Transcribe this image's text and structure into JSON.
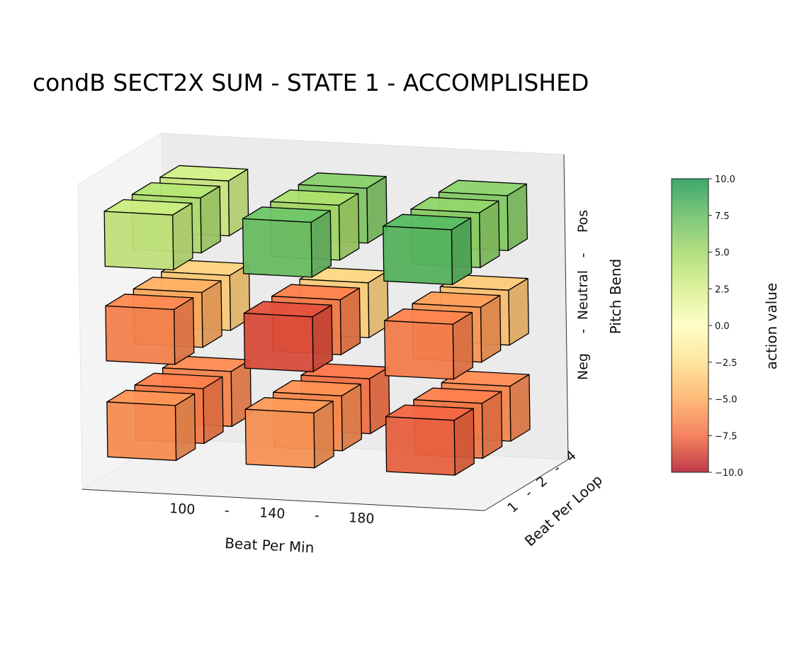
{
  "chart_data": {
    "type": "3d-bar",
    "title": "condB SECT2X SUM - STATE 1 - ACCOMPLISHED",
    "x_axis": {
      "label": "Beat Per Min",
      "ticks": [
        "100",
        "-",
        "140",
        "-",
        "180"
      ],
      "categories": [
        "100",
        "140",
        "180"
      ]
    },
    "y_axis": {
      "label": "Beat Per Loop",
      "ticks": [
        "1",
        "-",
        "2",
        "-",
        "4"
      ],
      "categories": [
        "1",
        "2",
        "4"
      ]
    },
    "z_axis": {
      "label": "Pitch Bend",
      "ticks": [
        "Neg",
        "-",
        "Neutral",
        "-",
        "Pos"
      ],
      "categories": [
        "Neg",
        "Neutral",
        "Pos"
      ]
    },
    "colorbar": {
      "label": "action value",
      "range": [
        -10,
        10
      ],
      "ticks": [
        "10.0",
        "7.5",
        "5.0",
        "2.5",
        "0.0",
        "−2.5",
        "−5.0",
        "−7.5",
        "−10.0"
      ],
      "colors": [
        "#b2182b",
        "#f46d43",
        "#fdae61",
        "#fee08b",
        "#ffffbf",
        "#d9ef8b",
        "#a6d96a",
        "#66bd63",
        "#1a9850"
      ]
    },
    "values": [
      {
        "bpm": "100",
        "loop": "1",
        "pitch": "Neg",
        "value": -6.2
      },
      {
        "bpm": "100",
        "loop": "2",
        "pitch": "Neg",
        "value": -7.0
      },
      {
        "bpm": "100",
        "loop": "4",
        "pitch": "Neg",
        "value": -6.5
      },
      {
        "bpm": "140",
        "loop": "1",
        "pitch": "Neg",
        "value": -6.0
      },
      {
        "bpm": "140",
        "loop": "2",
        "pitch": "Neg",
        "value": -6.3
      },
      {
        "bpm": "140",
        "loop": "4",
        "pitch": "Neg",
        "value": -7.3
      },
      {
        "bpm": "180",
        "loop": "1",
        "pitch": "Neg",
        "value": -7.8
      },
      {
        "bpm": "180",
        "loop": "2",
        "pitch": "Neg",
        "value": -7.0
      },
      {
        "bpm": "180",
        "loop": "4",
        "pitch": "Neg",
        "value": -6.5
      },
      {
        "bpm": "100",
        "loop": "1",
        "pitch": "Neutral",
        "value": -6.6
      },
      {
        "bpm": "100",
        "loop": "2",
        "pitch": "Neutral",
        "value": -5.2
      },
      {
        "bpm": "100",
        "loop": "4",
        "pitch": "Neutral",
        "value": -3.5
      },
      {
        "bpm": "140",
        "loop": "1",
        "pitch": "Neutral",
        "value": -8.4
      },
      {
        "bpm": "140",
        "loop": "2",
        "pitch": "Neutral",
        "value": -7.0
      },
      {
        "bpm": "140",
        "loop": "4",
        "pitch": "Neutral",
        "value": -3.3
      },
      {
        "bpm": "180",
        "loop": "1",
        "pitch": "Neutral",
        "value": -6.8
      },
      {
        "bpm": "180",
        "loop": "2",
        "pitch": "Neutral",
        "value": -5.8
      },
      {
        "bpm": "180",
        "loop": "4",
        "pitch": "Neutral",
        "value": -4.0
      },
      {
        "bpm": "100",
        "loop": "1",
        "pitch": "Pos",
        "value": 3.6
      },
      {
        "bpm": "100",
        "loop": "2",
        "pitch": "Pos",
        "value": 4.6
      },
      {
        "bpm": "100",
        "loop": "4",
        "pitch": "Pos",
        "value": 3.2
      },
      {
        "bpm": "140",
        "loop": "1",
        "pitch": "Pos",
        "value": 7.3
      },
      {
        "bpm": "140",
        "loop": "2",
        "pitch": "Pos",
        "value": 5.0
      },
      {
        "bpm": "140",
        "loop": "4",
        "pitch": "Pos",
        "value": 6.4
      },
      {
        "bpm": "180",
        "loop": "1",
        "pitch": "Pos",
        "value": 8.0
      },
      {
        "bpm": "180",
        "loop": "2",
        "pitch": "Pos",
        "value": 6.0
      },
      {
        "bpm": "180",
        "loop": "4",
        "pitch": "Pos",
        "value": 6.2
      }
    ]
  }
}
